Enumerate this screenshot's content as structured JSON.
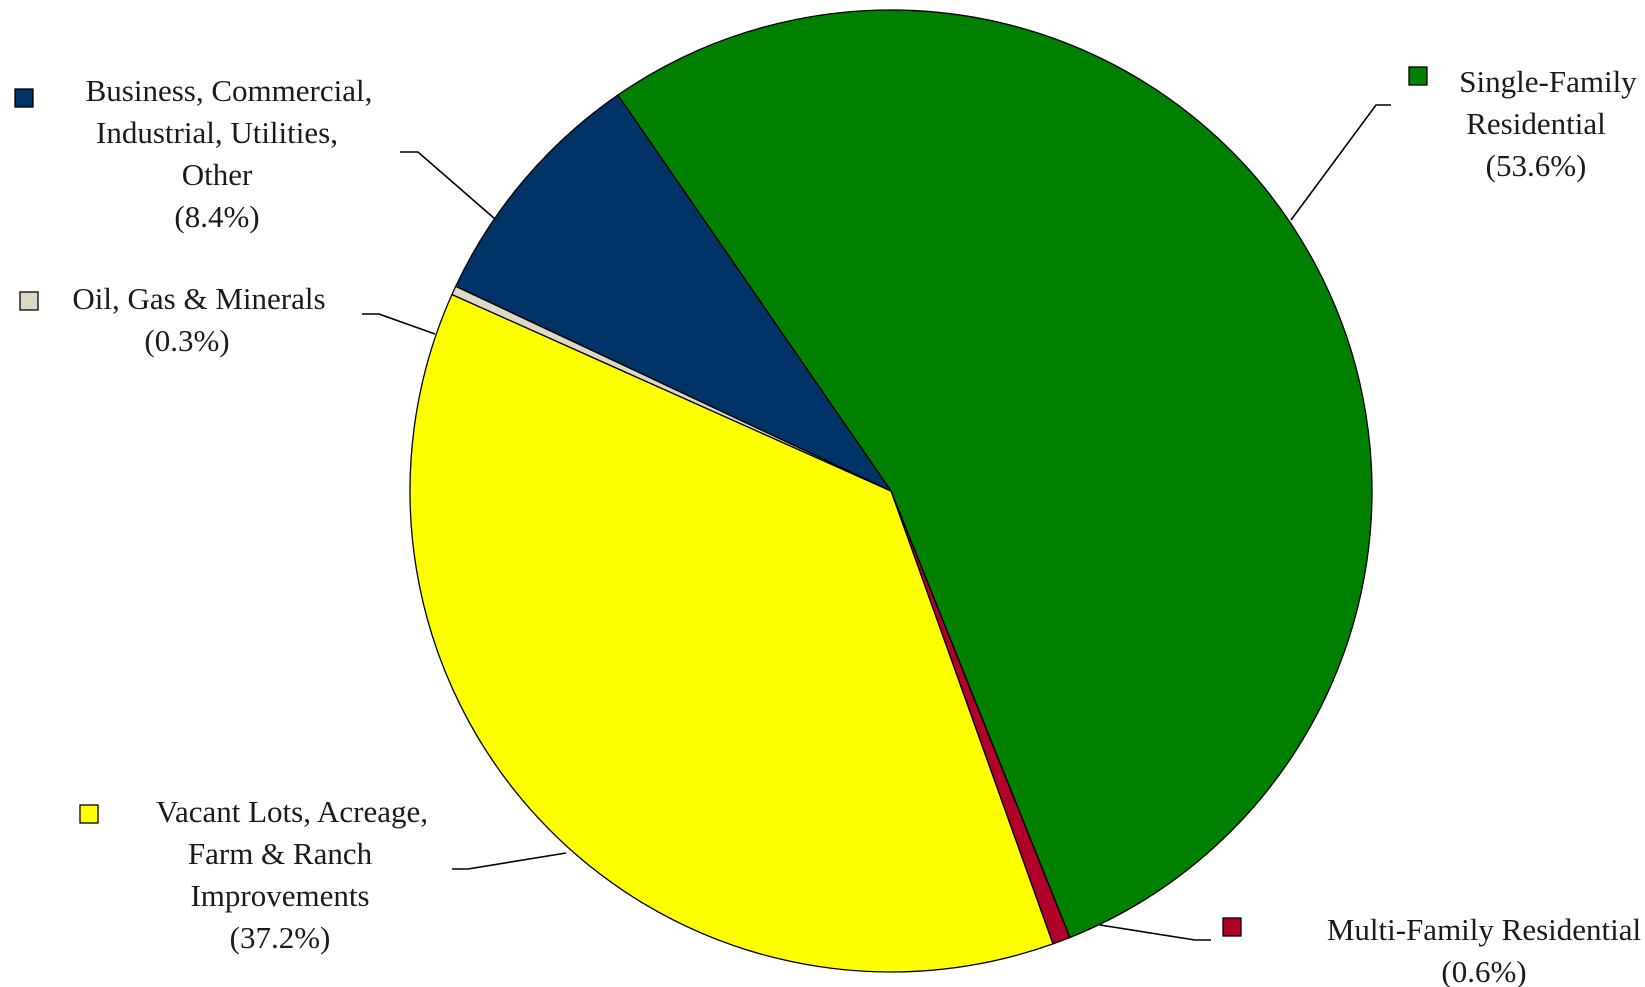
{
  "chart_data": {
    "type": "pie",
    "title": "",
    "start_angle_deg": -34.6,
    "direction": "clockwise",
    "slices": [
      {
        "label_lines": [
          "Single-Family",
          "Residential"
        ],
        "value": 53.6,
        "value_label": "(53.6%)",
        "color": "#008000"
      },
      {
        "label_lines": [
          "Multi-Family Residential"
        ],
        "value": 0.6,
        "value_label": "(0.6%)",
        "color": "#b0002a"
      },
      {
        "label_lines": [
          "Vacant Lots, Acreage,",
          "Farm & Ranch",
          "Improvements"
        ],
        "value": 37.2,
        "value_label": "(37.2%)",
        "color": "#ffff00"
      },
      {
        "label_lines": [
          "Oil, Gas & Minerals"
        ],
        "value": 0.3,
        "value_label": "(0.3%)",
        "color": "#ddd8c4"
      },
      {
        "label_lines": [
          "Business, Commercial,",
          "Industrial, Utilities,",
          "Other"
        ],
        "value": 8.4,
        "value_label": "(8.4%)",
        "color": "#003366"
      }
    ]
  }
}
